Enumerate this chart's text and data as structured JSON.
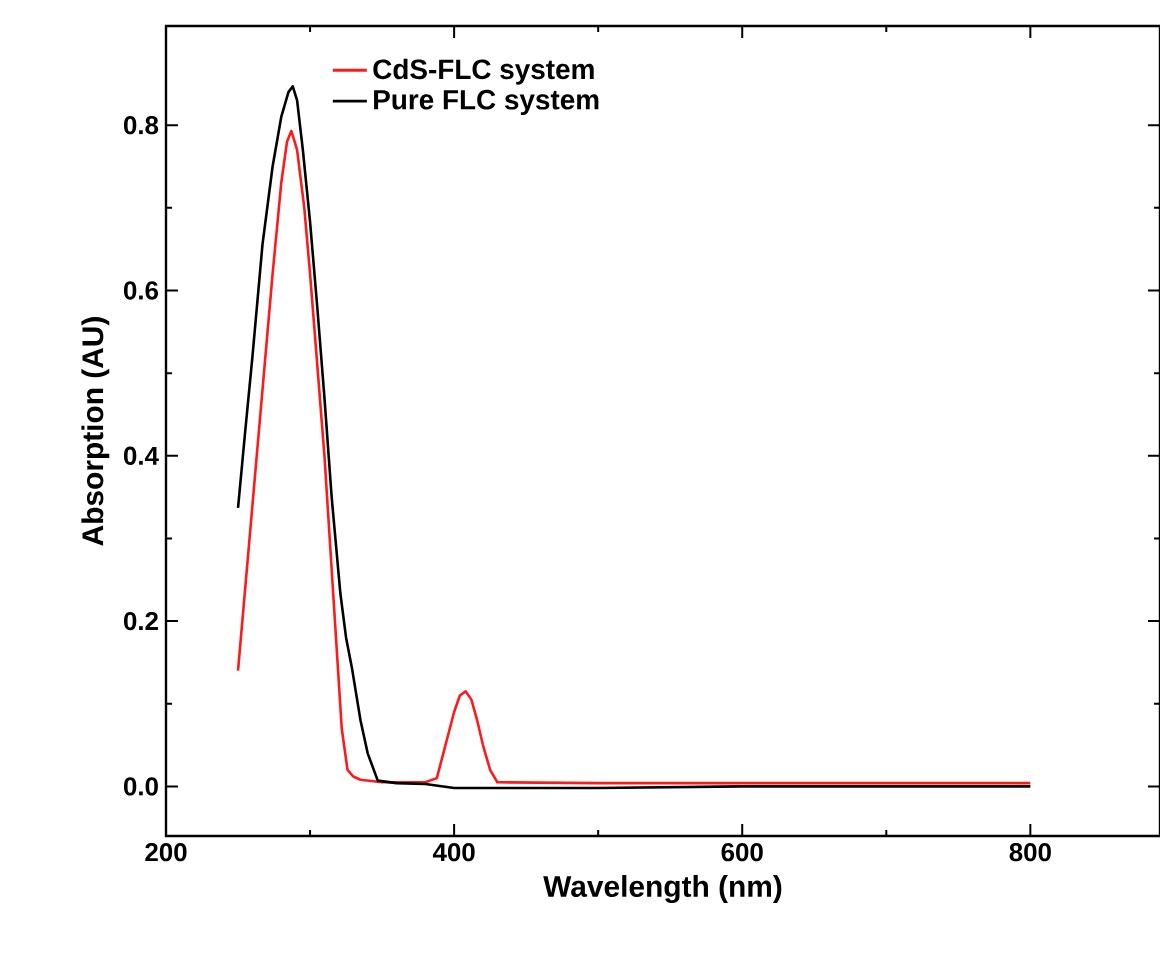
{
  "chart_data": {
    "type": "line",
    "xlabel": "Wavelength (nm)",
    "ylabel": "Absorption (AU)",
    "xlim": [
      200,
      890
    ],
    "xticks": [
      200,
      400,
      600,
      800
    ],
    "ylim": [
      -0.06,
      0.92
    ],
    "yticks": [
      {
        "value": 0,
        "label": "0.0"
      },
      {
        "value": 0.2,
        "label": "0.2"
      },
      {
        "value": 0.4,
        "label": "0.4"
      },
      {
        "value": 0.6,
        "label": "0.6"
      },
      {
        "value": 0.8,
        "label": "0.8"
      }
    ],
    "legend": "top",
    "grid": false,
    "marker": "none",
    "line_style": "solid",
    "series": [
      {
        "name": "CdS-FLC system",
        "color": "#ff1a1a",
        "x": [
          250,
          258,
          266,
          274,
          280,
          284,
          287,
          291,
          296,
          300,
          305,
          310,
          314,
          318,
          322,
          326,
          330,
          335,
          350,
          380,
          388,
          394,
          400,
          404,
          408,
          412,
          416,
          420,
          425,
          430,
          500,
          600,
          700,
          800
        ],
        "values": [
          0.14,
          0.3,
          0.46,
          0.62,
          0.73,
          0.78,
          0.793,
          0.77,
          0.7,
          0.62,
          0.51,
          0.4,
          0.29,
          0.18,
          0.07,
          0.02,
          0.012,
          0.008,
          0.005,
          0.005,
          0.01,
          0.05,
          0.09,
          0.11,
          0.115,
          0.105,
          0.08,
          0.05,
          0.02,
          0.005,
          0.004,
          0.004,
          0.004,
          0.004
        ]
      },
      {
        "name": "Pure FLC system",
        "color": "#000000",
        "x": [
          250,
          255,
          260,
          267,
          274,
          280,
          285,
          288,
          291,
          295,
          300,
          305,
          310,
          315,
          321,
          325,
          329,
          335,
          340,
          347,
          360,
          380,
          400,
          450,
          500,
          600,
          700,
          800
        ],
        "values": [
          0.337,
          0.43,
          0.52,
          0.656,
          0.75,
          0.81,
          0.84,
          0.847,
          0.83,
          0.77,
          0.683,
          0.58,
          0.47,
          0.35,
          0.234,
          0.18,
          0.144,
          0.08,
          0.04,
          0.007,
          0.004,
          0.003,
          -0.002,
          -0.002,
          -0.002,
          0.0,
          0.0,
          0.0
        ]
      }
    ]
  }
}
